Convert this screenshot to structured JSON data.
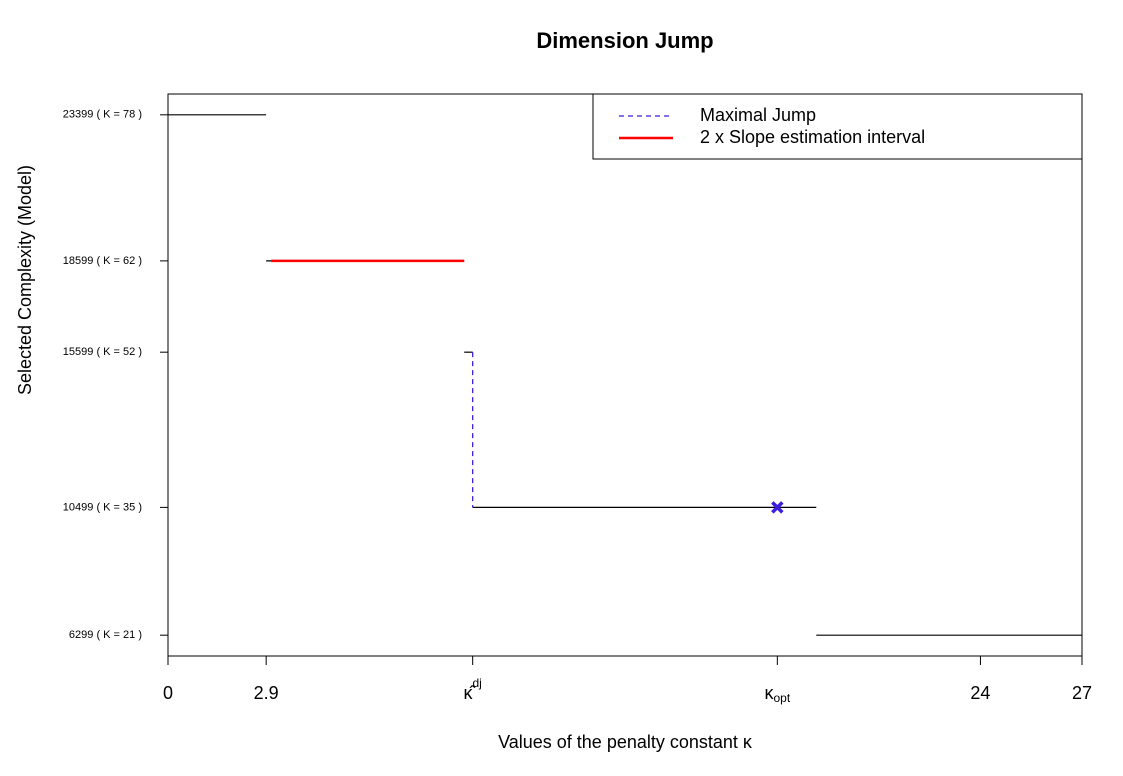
{
  "chart_data": {
    "type": "step",
    "title": "Dimension Jump",
    "x_label": "Values of the penalty constant κ",
    "y_label": "Selected Complexity (Model)",
    "xlim": [
      0,
      27
    ],
    "ylim": [
      5615,
      24083
    ],
    "xticks": [
      0,
      2.9,
      {
        "value": 9,
        "label": "κ̂",
        "sup": "dj"
      },
      {
        "value": 18,
        "label": "κ",
        "sub": "opt"
      },
      24,
      27
    ],
    "yticks": [
      {
        "value": 6299,
        "label": "6299 ( K = 21 )"
      },
      {
        "value": 10499,
        "label": "10499 ( K = 35 )"
      },
      {
        "value": 15599,
        "label": "15599 ( K = 52 )"
      },
      {
        "value": 18599,
        "label": "18599 ( K = 62 )"
      },
      {
        "value": 23399,
        "label": "23399 ( K = 78 )"
      }
    ],
    "steps": {
      "color": "#000000",
      "x_start": [
        0,
        2.9,
        8.75,
        9,
        19.15
      ],
      "x_end": [
        2.9,
        8.75,
        9,
        19.15,
        27
      ],
      "y": [
        23399,
        18599,
        15599,
        10499,
        6299
      ]
    },
    "maximal_jump": {
      "name": "Maximal Jump",
      "color": "#3b1fe0",
      "x": 9,
      "y_from": 15599,
      "y_to": 10499
    },
    "slope_interval": {
      "name": "2 x Slope estimation interval",
      "color": "#ff0000",
      "x_from": 3.05,
      "x_to": 8.75,
      "y": 18599
    },
    "selected_point": {
      "color": "#3b1fe0",
      "x": 18,
      "y": 10499
    },
    "legend": "top-right"
  }
}
